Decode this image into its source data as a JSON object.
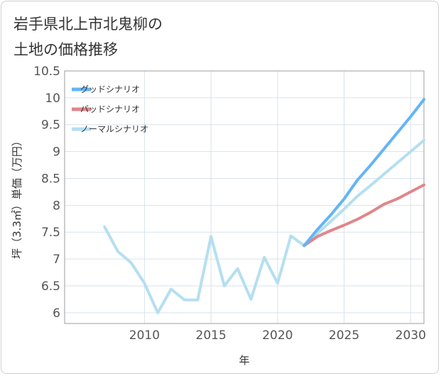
{
  "chart_data": {
    "type": "line",
    "title_lines": [
      "岩手県北上市北鬼柳の",
      "土地の価格推移"
    ],
    "xlabel": "年",
    "ylabel": "坪（3.3㎡）単価（万円）",
    "xlim": [
      2004,
      2031
    ],
    "ylim": [
      5.8,
      10.5
    ],
    "x_ticks": [
      2010,
      2015,
      2020,
      2025,
      2030
    ],
    "y_ticks": [
      6,
      6.5,
      7,
      7.5,
      8,
      8.5,
      9,
      9.5,
      10,
      10.5
    ],
    "y_tick_labels": [
      "6",
      "6.5",
      "7",
      "7.5",
      "8",
      "8.5",
      "9",
      "9.5",
      "10",
      "10.5"
    ],
    "grid": true,
    "legend_position": "top-left",
    "series": [
      {
        "name": "グッドシナリオ",
        "color": "#64b5f6",
        "x": [
          2022,
          2023,
          2024,
          2025,
          2026,
          2027,
          2028,
          2029,
          2030,
          2031
        ],
        "y": [
          7.25,
          7.55,
          7.82,
          8.12,
          8.47,
          8.75,
          9.05,
          9.35,
          9.65,
          9.97
        ]
      },
      {
        "name": "バッドシナリオ",
        "color": "#e0868c",
        "x": [
          2022,
          2023,
          2024,
          2025,
          2026,
          2027,
          2028,
          2029,
          2030,
          2031
        ],
        "y": [
          7.25,
          7.42,
          7.53,
          7.63,
          7.74,
          7.87,
          8.02,
          8.12,
          8.25,
          8.38
        ]
      },
      {
        "name": "ノーマルシナリオ",
        "color": "#b5dff0",
        "x": [
          2007,
          2008,
          2009,
          2010,
          2011,
          2012,
          2013,
          2014,
          2015,
          2016,
          2017,
          2018,
          2019,
          2020,
          2021,
          2022,
          2023,
          2024,
          2025,
          2026,
          2027,
          2028,
          2029,
          2030,
          2031
        ],
        "y": [
          7.6,
          7.14,
          6.93,
          6.55,
          6.0,
          6.44,
          6.24,
          6.24,
          7.42,
          6.5,
          6.82,
          6.25,
          7.03,
          6.55,
          7.43,
          7.25,
          7.48,
          7.7,
          7.93,
          8.17,
          8.37,
          8.58,
          8.79,
          9.0,
          9.21
        ]
      }
    ]
  }
}
